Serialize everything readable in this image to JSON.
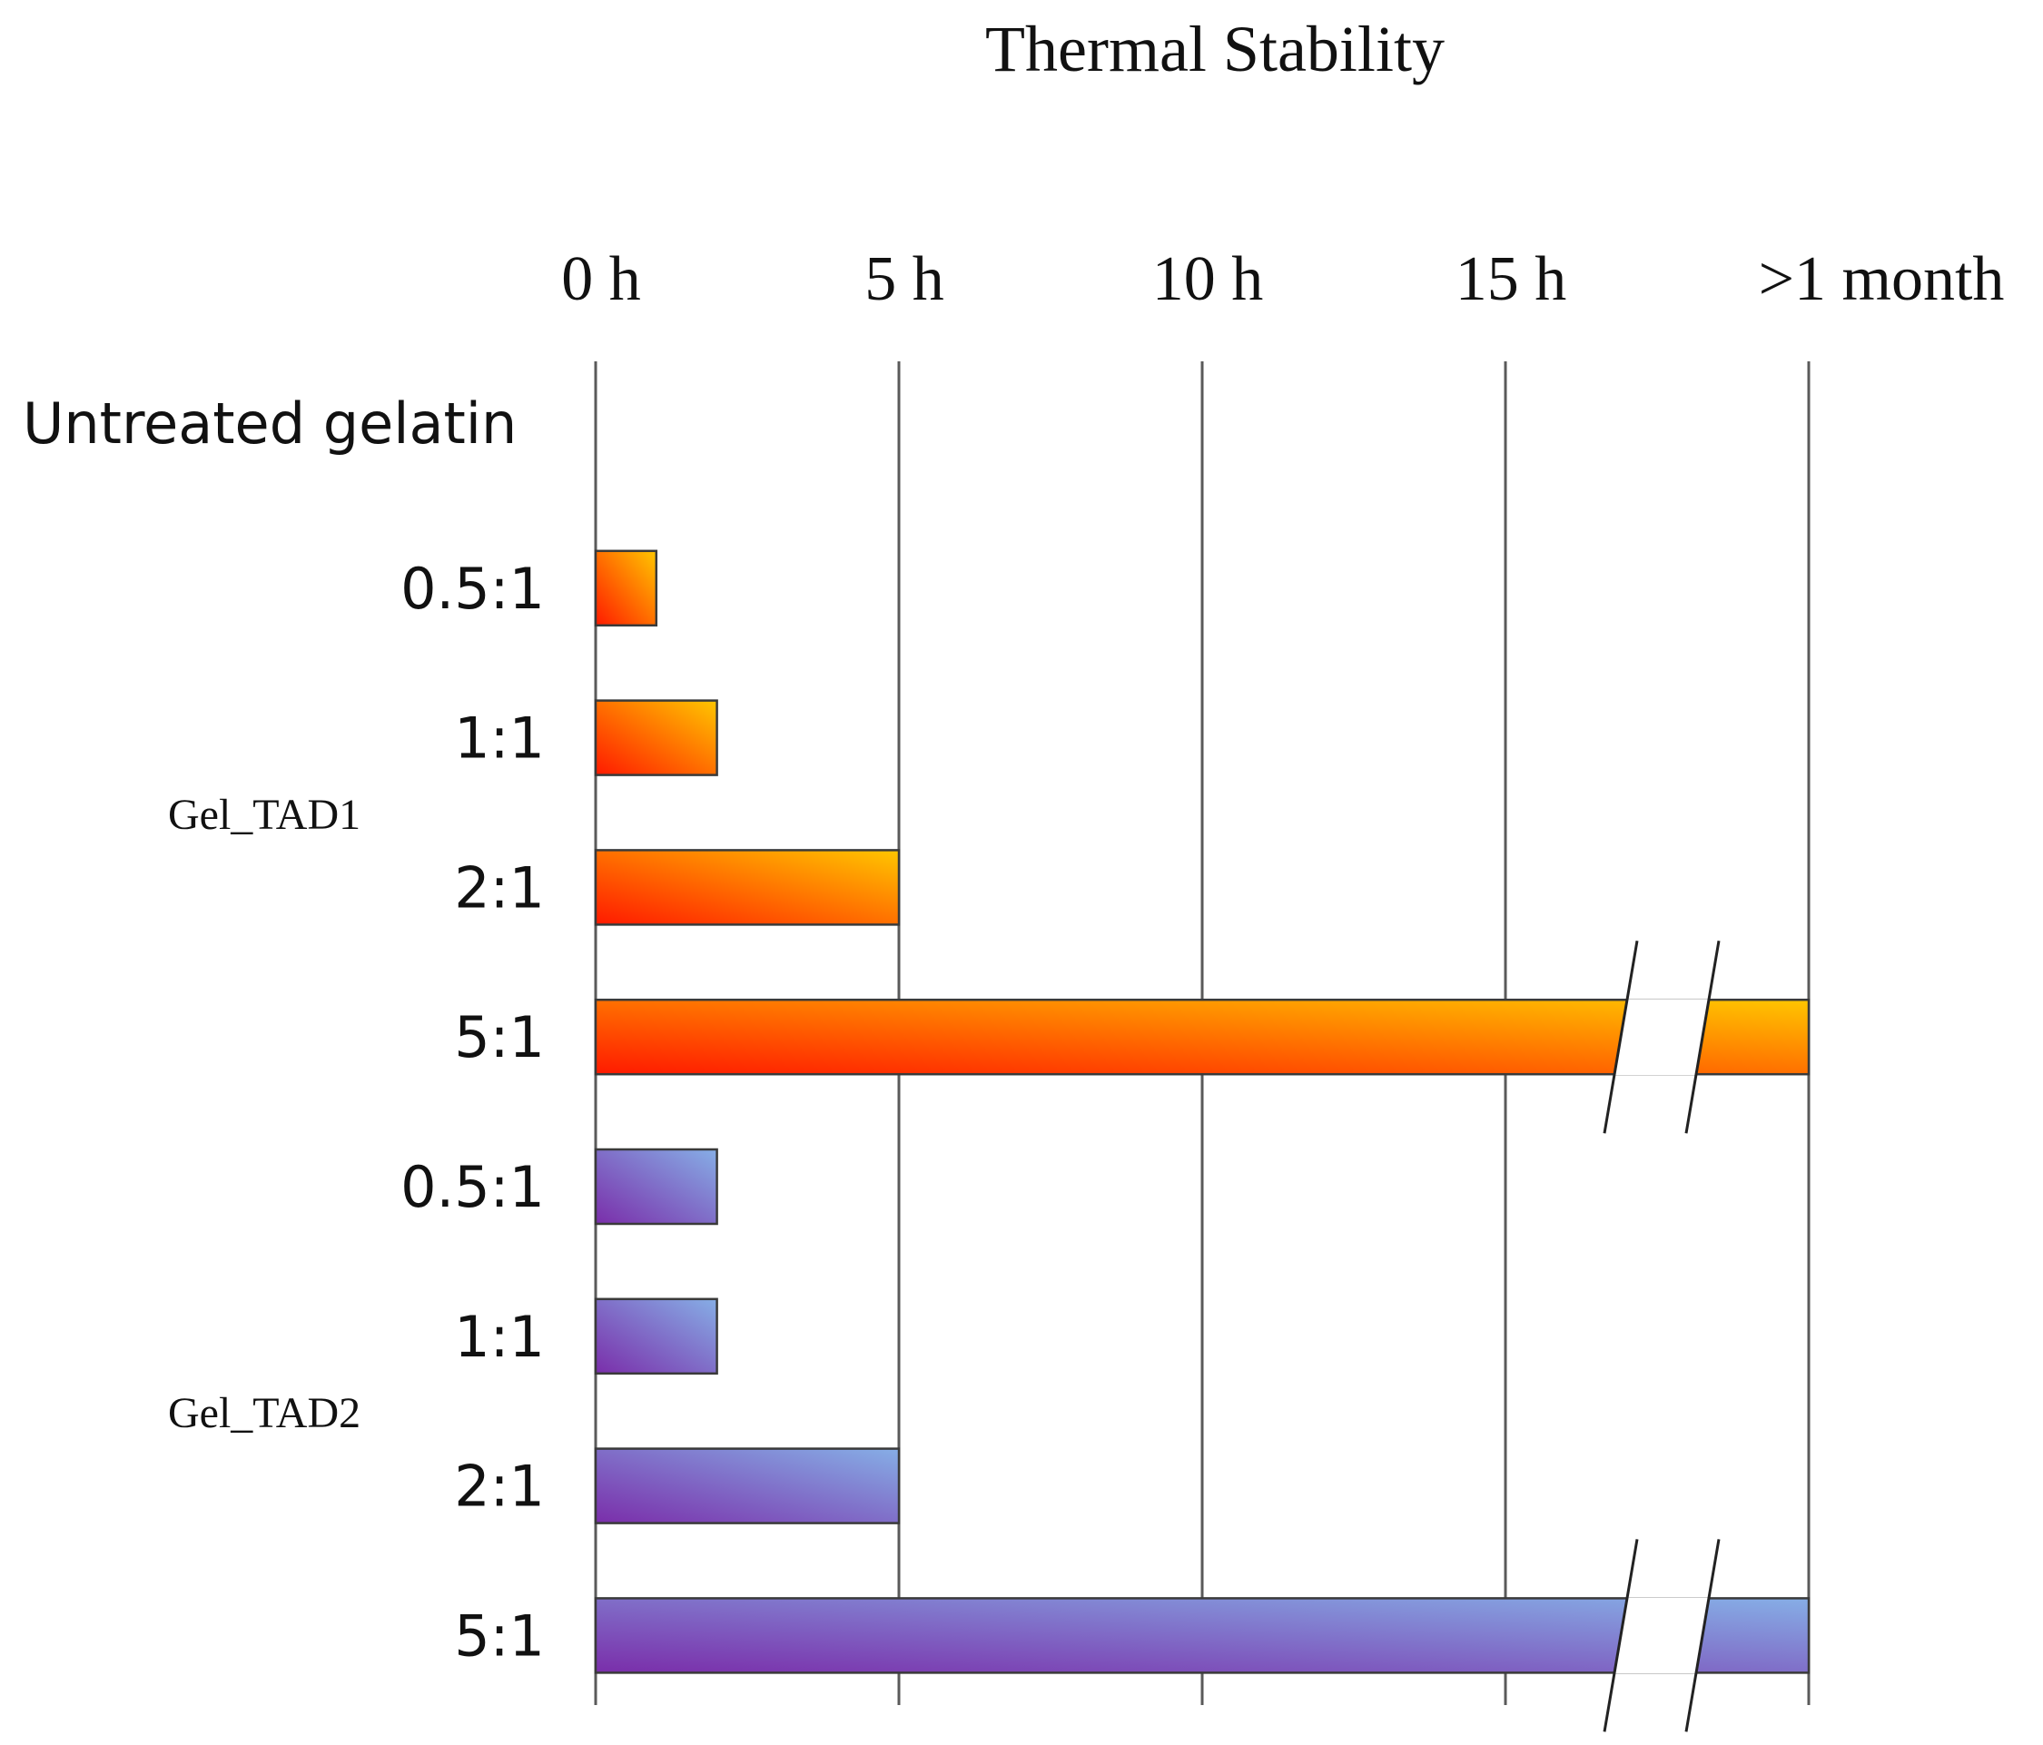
{
  "chart_data": {
    "type": "bar",
    "orientation": "horizontal",
    "title": "Thermal Stability",
    "xlabel": "",
    "ylabel": "",
    "xlim": [
      0,
      20
    ],
    "x_ticks": [
      0,
      5,
      10,
      15,
      20
    ],
    "x_tick_labels": [
      "0 h",
      "5 h",
      "10 h",
      "15 h",
      ">1 month"
    ],
    "axis_break": "between 15 h and >1 month",
    "grid": true,
    "categories": [
      {
        "label": "Untreated gelatin",
        "group": "",
        "value": 0,
        "series": "none"
      },
      {
        "label": "0.5:1",
        "group": "Gel_TAD1",
        "value": 1,
        "series": "Gel_TAD1"
      },
      {
        "label": "1:1",
        "group": "Gel_TAD1",
        "value": 2,
        "series": "Gel_TAD1"
      },
      {
        "label": "2:1",
        "group": "Gel_TAD1",
        "value": 5,
        "series": "Gel_TAD1"
      },
      {
        "label": "5:1",
        "group": "Gel_TAD1",
        "value": 20,
        "value_label": ">1 month",
        "broken": true,
        "series": "Gel_TAD1"
      },
      {
        "label": "0.5:1",
        "group": "Gel_TAD2",
        "value": 2,
        "series": "Gel_TAD2"
      },
      {
        "label": "1:1",
        "group": "Gel_TAD2",
        "value": 2,
        "series": "Gel_TAD2"
      },
      {
        "label": "2:1",
        "group": "Gel_TAD2",
        "value": 5,
        "series": "Gel_TAD2"
      },
      {
        "label": "5:1",
        "group": "Gel_TAD2",
        "value": 20,
        "value_label": ">1 month",
        "broken": true,
        "series": "Gel_TAD2"
      }
    ],
    "groups": [
      {
        "name": "Gel_TAD1",
        "members": [
          1,
          2,
          3,
          4
        ]
      },
      {
        "name": "Gel_TAD2",
        "members": [
          5,
          6,
          7,
          8
        ]
      }
    ],
    "series_colors": {
      "Gel_TAD1": {
        "start": "#ff1a00",
        "end": "#ffc600"
      },
      "Gel_TAD2": {
        "start": "#7a2eaa",
        "end": "#86aee6"
      }
    }
  }
}
